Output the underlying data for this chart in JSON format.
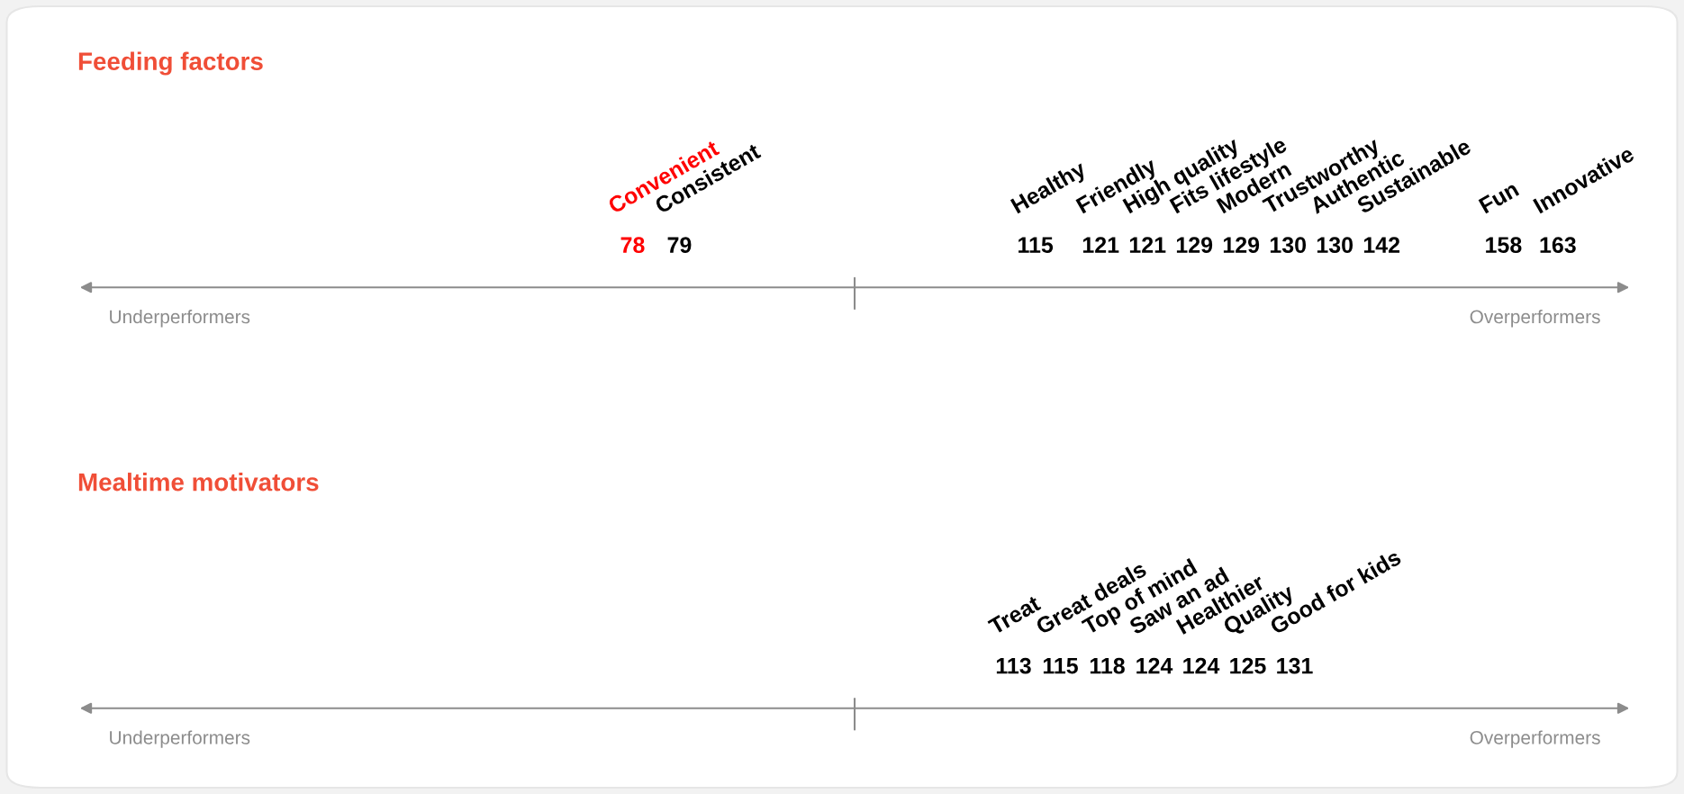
{
  "chart_data": [
    {
      "type": "other",
      "title": "Feeding factors",
      "categories": [
        "Convenient",
        "Consistent",
        "Healthy",
        "Friendly",
        "High quality",
        "Fits lifestyle",
        "Modern",
        "Trustworthy",
        "Authentic",
        "Sustainable",
        "Fun",
        "Innovative"
      ],
      "values": [
        78,
        79,
        115,
        121,
        121,
        129,
        129,
        130,
        130,
        142,
        158,
        163
      ],
      "colors": [
        "#ff0000",
        "#000000",
        "#000000",
        "#000000",
        "#000000",
        "#000000",
        "#000000",
        "#000000",
        "#000000",
        "#000000",
        "#000000",
        "#000000"
      ],
      "data_labels": true,
      "annotations": [
        "Underperformers",
        "Overperformers"
      ]
    },
    {
      "type": "other",
      "title": "Mealtime motivators",
      "categories": [
        "Treat",
        "Great deals",
        "Top of mind",
        "Saw an ad",
        "Healthier",
        "Quality",
        "Good for kids"
      ],
      "values": [
        113,
        115,
        118,
        124,
        124,
        125,
        131
      ],
      "colors": [
        "#000000",
        "#000000",
        "#000000",
        "#000000",
        "#000000",
        "#000000",
        "#000000"
      ],
      "data_labels": true,
      "annotations": [
        "Underperformers",
        "Overperformers"
      ]
    }
  ]
}
